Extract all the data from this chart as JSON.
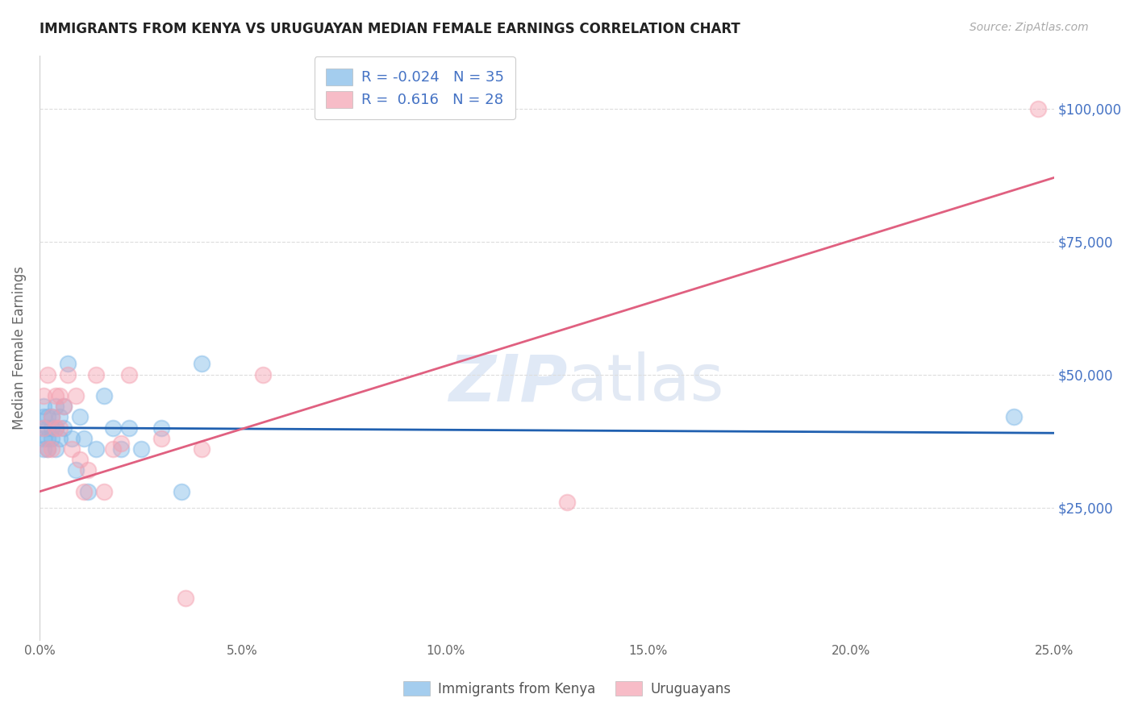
{
  "title": "IMMIGRANTS FROM KENYA VS URUGUAYAN MEDIAN FEMALE EARNINGS CORRELATION CHART",
  "source": "Source: ZipAtlas.com",
  "ylabel": "Median Female Earnings",
  "xlim": [
    0.0,
    0.25
  ],
  "ylim": [
    0,
    110000
  ],
  "xtick_labels": [
    "0.0%",
    "5.0%",
    "10.0%",
    "15.0%",
    "20.0%",
    "25.0%"
  ],
  "xtick_values": [
    0.0,
    0.05,
    0.1,
    0.15,
    0.2,
    0.25
  ],
  "ytick_labels": [
    "$25,000",
    "$50,000",
    "$75,000",
    "$100,000"
  ],
  "ytick_values": [
    25000,
    50000,
    75000,
    100000
  ],
  "legend_entries": [
    {
      "label": "Immigrants from Kenya",
      "color": "#7eb8e8",
      "R": "-0.024",
      "N": "35"
    },
    {
      "label": "Uruguayans",
      "color": "#f4a0b0",
      "R": "0.616",
      "N": "28"
    }
  ],
  "blue_points_x": [
    0.001,
    0.001,
    0.001,
    0.001,
    0.001,
    0.002,
    0.002,
    0.002,
    0.002,
    0.003,
    0.003,
    0.003,
    0.004,
    0.004,
    0.004,
    0.005,
    0.005,
    0.006,
    0.006,
    0.007,
    0.008,
    0.009,
    0.01,
    0.011,
    0.012,
    0.014,
    0.016,
    0.018,
    0.02,
    0.022,
    0.025,
    0.03,
    0.035,
    0.04,
    0.24
  ],
  "blue_points_y": [
    40000,
    42000,
    44000,
    38000,
    36000,
    42000,
    38000,
    40000,
    36000,
    40000,
    38000,
    42000,
    36000,
    40000,
    44000,
    38000,
    42000,
    40000,
    44000,
    52000,
    38000,
    32000,
    42000,
    38000,
    28000,
    36000,
    46000,
    40000,
    36000,
    40000,
    36000,
    40000,
    28000,
    52000,
    42000
  ],
  "pink_points_x": [
    0.001,
    0.001,
    0.002,
    0.002,
    0.003,
    0.003,
    0.004,
    0.004,
    0.005,
    0.005,
    0.006,
    0.007,
    0.008,
    0.009,
    0.01,
    0.011,
    0.012,
    0.014,
    0.016,
    0.018,
    0.02,
    0.022,
    0.03,
    0.036,
    0.04,
    0.055,
    0.13,
    0.246
  ],
  "pink_points_y": [
    40000,
    46000,
    36000,
    50000,
    36000,
    42000,
    40000,
    46000,
    40000,
    46000,
    44000,
    50000,
    36000,
    46000,
    34000,
    28000,
    32000,
    50000,
    28000,
    36000,
    37000,
    50000,
    38000,
    8000,
    36000,
    50000,
    26000,
    100000
  ],
  "background_color": "#ffffff",
  "grid_color": "#dddddd",
  "blue_color": "#7eb8e8",
  "pink_color": "#f4a0b0",
  "blue_line_color": "#2060b0",
  "pink_line_color": "#e06080",
  "blue_line_y0": 40000,
  "blue_line_y1": 39000,
  "pink_line_y0": 28000,
  "pink_line_y1": 87000
}
